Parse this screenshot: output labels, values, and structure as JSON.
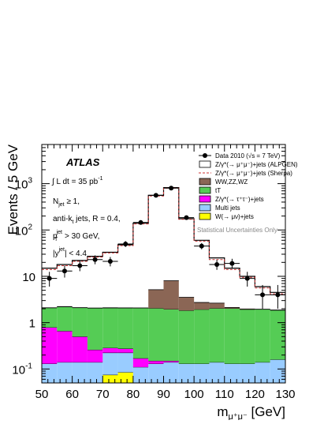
{
  "chart_data": {
    "type": "bar",
    "ylabel": "Events / 5 GeV",
    "xlabel_main": "m",
    "xlabel_sub": "μ⁺μ⁻",
    "xlabel_unit": " [GeV]",
    "ylog": true,
    "xlim": [
      50,
      130
    ],
    "ylim": [
      0.05,
      7000
    ],
    "x_ticks": [
      50,
      60,
      70,
      80,
      90,
      100,
      110,
      120,
      130
    ],
    "y_ticks": [
      {
        "value": 0.1,
        "base": "10",
        "exp": "-1"
      },
      {
        "value": 1,
        "base": "1",
        "exp": ""
      },
      {
        "value": 10,
        "base": "10",
        "exp": ""
      },
      {
        "value": 100,
        "base": "10",
        "exp": "2"
      },
      {
        "value": 1000,
        "base": "10",
        "exp": "3"
      }
    ],
    "bin_edges": [
      50,
      55,
      60,
      65,
      70,
      75,
      80,
      85,
      90,
      95,
      100,
      105,
      110,
      115,
      120,
      125,
      130
    ],
    "stack": [
      {
        "name": "W(→ μν)+jets",
        "color": "#ffff00",
        "values": [
          0,
          0,
          0,
          0,
          0.075,
          0.085,
          0,
          0,
          0,
          0,
          0,
          0,
          0,
          0,
          0,
          0
        ]
      },
      {
        "name": "Multi jets",
        "color": "#99ccff",
        "values": [
          0.13,
          0.14,
          0.14,
          0.14,
          0.15,
          0.14,
          0.11,
          0.13,
          0.14,
          0.13,
          0.13,
          0.14,
          0.13,
          0.13,
          0.14,
          0.16
        ]
      },
      {
        "name": "Z/γ*(→ τ⁺τ⁻)+jets",
        "color": "#ff00ff",
        "values": [
          0.66,
          0.52,
          0.36,
          0.12,
          0.06,
          0.05,
          0.06,
          0.02,
          0.01,
          0,
          0,
          0,
          0,
          0,
          0,
          0
        ]
      },
      {
        "name": "tT",
        "color": "#55cc55",
        "values": [
          1.3,
          1.55,
          1.6,
          1.8,
          1.8,
          1.8,
          1.9,
          1.9,
          1.8,
          1.7,
          1.8,
          1.9,
          1.9,
          1.8,
          1.8,
          1.7
        ]
      },
      {
        "name": "WW,ZZ,WZ",
        "color": "#8b6655",
        "values": [
          0.01,
          0.01,
          0.01,
          0.01,
          0.01,
          0.01,
          0.01,
          3.1,
          6.1,
          1.7,
          0.8,
          0.6,
          0.1,
          0.05,
          0.01,
          0.01
        ]
      }
    ],
    "mc_alpgen": [
      15,
      18,
      22,
      27,
      33,
      48,
      140,
      560,
      820,
      175,
      60,
      25,
      15,
      10,
      6,
      4.5
    ],
    "mc_sherpa": [
      14,
      17,
      21,
      26,
      32,
      46,
      135,
      540,
      800,
      170,
      57,
      23,
      14,
      9.5,
      5.6,
      4.2
    ],
    "data": {
      "name": "Data 2010 (√s = 7 TeV)",
      "x": [
        52.5,
        57.5,
        62.5,
        67.5,
        72.5,
        77.5,
        82.5,
        87.5,
        92.5,
        97.5,
        102.5,
        107.5,
        112.5,
        117.5,
        122.5,
        127.5
      ],
      "y": [
        9,
        13,
        17,
        23,
        21,
        50,
        145,
        560,
        800,
        185,
        45,
        18,
        19,
        9,
        4,
        4
      ],
      "yerr_low": [
        3,
        3.6,
        4.1,
        4.8,
        4.6,
        7.1,
        12,
        24,
        28,
        14,
        6.7,
        4.2,
        4.4,
        3,
        2,
        2
      ],
      "yerr_high": [
        3.5,
        4.1,
        4.6,
        5.3,
        5.1,
        7.6,
        12.5,
        24.5,
        28.5,
        14.5,
        7.2,
        4.7,
        4.9,
        3.5,
        2.5,
        2.5
      ]
    },
    "legend": [
      {
        "label": "Data 2010 (√s = 7 TeV)",
        "kind": "data"
      },
      {
        "label": "Z/γ*(→ μ⁺μ⁻)+jets (ALPGEN)",
        "kind": "box",
        "fill": "#ffffff",
        "stroke": "#000000"
      },
      {
        "label": "Z/γ*(→ μ⁺μ⁻)+jets (Sherpa)",
        "kind": "dashed",
        "stroke": "#cc3333"
      },
      {
        "label": "WW,ZZ,WZ",
        "kind": "box",
        "fill": "#8b6655",
        "stroke": "#000000"
      },
      {
        "label": "tT",
        "kind": "box",
        "fill": "#55cc55",
        "stroke": "#000000"
      },
      {
        "label": "Z/γ*(→ τ⁺τ⁻)+jets",
        "kind": "box",
        "fill": "#ff00ff",
        "stroke": "#000000"
      },
      {
        "label": "Multi jets",
        "kind": "box",
        "fill": "#99ccff",
        "stroke": "#000000"
      },
      {
        "label": "W(→ μν)+jets",
        "kind": "box",
        "fill": "#ffff00",
        "stroke": "#000000"
      }
    ],
    "legend_placement": "top-right",
    "legend_note": "Statistical Uncertainties Only",
    "annotations": {
      "experiment": "ATLAS",
      "lumi_prefix": "∫ L dt = 35 pb",
      "lumi_exp": "-1",
      "njet": "N",
      "njet_sub": "jet",
      "njet_rest": " ≥ 1,",
      "algo": "anti-k",
      "algo_sub": "t",
      "algo_rest": " jets,  R = 0.4,",
      "pt": "p",
      "pt_sub": "T",
      "pt_sup": "jet",
      "pt_rest": " > 30 GeV,",
      "y_pre": "|y",
      "y_sup": "jet",
      "y_rest": "| < 4.4"
    },
    "colors": {
      "alpgen_line": "#000000",
      "sherpa_line": "#cc3333",
      "data": "#000000"
    },
    "grid": false
  }
}
